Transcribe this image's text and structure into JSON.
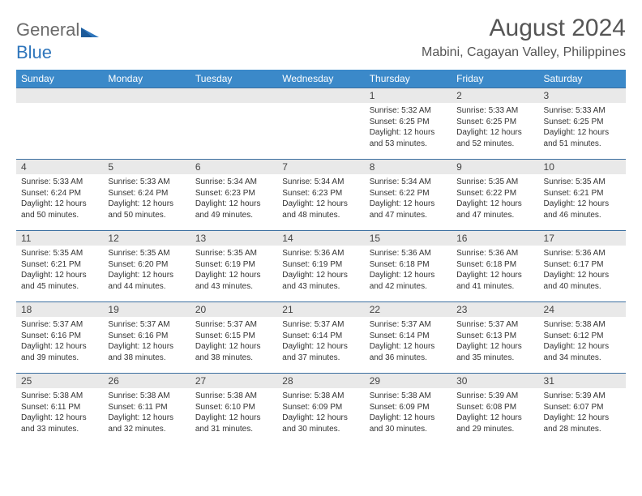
{
  "logo": {
    "part1": "General",
    "part2": "Blue"
  },
  "title": "August 2024",
  "location": "Mabini, Cagayan Valley, Philippines",
  "columns": [
    "Sunday",
    "Monday",
    "Tuesday",
    "Wednesday",
    "Thursday",
    "Friday",
    "Saturday"
  ],
  "colors": {
    "header_bg": "#3b89c9",
    "header_text": "#ffffff",
    "daynum_bg": "#e9e9e9",
    "border": "#3b6fa0",
    "logo_blue": "#2f76bc",
    "logo_gray": "#6b6b6b",
    "title_color": "#555555",
    "text": "#333333"
  },
  "fonts": {
    "title_size": 30,
    "location_size": 16,
    "dayhead_size": 12,
    "daynum_size": 12,
    "body_size": 10
  },
  "weeks": [
    [
      null,
      null,
      null,
      null,
      {
        "n": "1",
        "sr": "5:32 AM",
        "ss": "6:25 PM",
        "dl": "12 hours and 53 minutes."
      },
      {
        "n": "2",
        "sr": "5:33 AM",
        "ss": "6:25 PM",
        "dl": "12 hours and 52 minutes."
      },
      {
        "n": "3",
        "sr": "5:33 AM",
        "ss": "6:25 PM",
        "dl": "12 hours and 51 minutes."
      }
    ],
    [
      {
        "n": "4",
        "sr": "5:33 AM",
        "ss": "6:24 PM",
        "dl": "12 hours and 50 minutes."
      },
      {
        "n": "5",
        "sr": "5:33 AM",
        "ss": "6:24 PM",
        "dl": "12 hours and 50 minutes."
      },
      {
        "n": "6",
        "sr": "5:34 AM",
        "ss": "6:23 PM",
        "dl": "12 hours and 49 minutes."
      },
      {
        "n": "7",
        "sr": "5:34 AM",
        "ss": "6:23 PM",
        "dl": "12 hours and 48 minutes."
      },
      {
        "n": "8",
        "sr": "5:34 AM",
        "ss": "6:22 PM",
        "dl": "12 hours and 47 minutes."
      },
      {
        "n": "9",
        "sr": "5:35 AM",
        "ss": "6:22 PM",
        "dl": "12 hours and 47 minutes."
      },
      {
        "n": "10",
        "sr": "5:35 AM",
        "ss": "6:21 PM",
        "dl": "12 hours and 46 minutes."
      }
    ],
    [
      {
        "n": "11",
        "sr": "5:35 AM",
        "ss": "6:21 PM",
        "dl": "12 hours and 45 minutes."
      },
      {
        "n": "12",
        "sr": "5:35 AM",
        "ss": "6:20 PM",
        "dl": "12 hours and 44 minutes."
      },
      {
        "n": "13",
        "sr": "5:35 AM",
        "ss": "6:19 PM",
        "dl": "12 hours and 43 minutes."
      },
      {
        "n": "14",
        "sr": "5:36 AM",
        "ss": "6:19 PM",
        "dl": "12 hours and 43 minutes."
      },
      {
        "n": "15",
        "sr": "5:36 AM",
        "ss": "6:18 PM",
        "dl": "12 hours and 42 minutes."
      },
      {
        "n": "16",
        "sr": "5:36 AM",
        "ss": "6:18 PM",
        "dl": "12 hours and 41 minutes."
      },
      {
        "n": "17",
        "sr": "5:36 AM",
        "ss": "6:17 PM",
        "dl": "12 hours and 40 minutes."
      }
    ],
    [
      {
        "n": "18",
        "sr": "5:37 AM",
        "ss": "6:16 PM",
        "dl": "12 hours and 39 minutes."
      },
      {
        "n": "19",
        "sr": "5:37 AM",
        "ss": "6:16 PM",
        "dl": "12 hours and 38 minutes."
      },
      {
        "n": "20",
        "sr": "5:37 AM",
        "ss": "6:15 PM",
        "dl": "12 hours and 38 minutes."
      },
      {
        "n": "21",
        "sr": "5:37 AM",
        "ss": "6:14 PM",
        "dl": "12 hours and 37 minutes."
      },
      {
        "n": "22",
        "sr": "5:37 AM",
        "ss": "6:14 PM",
        "dl": "12 hours and 36 minutes."
      },
      {
        "n": "23",
        "sr": "5:37 AM",
        "ss": "6:13 PM",
        "dl": "12 hours and 35 minutes."
      },
      {
        "n": "24",
        "sr": "5:38 AM",
        "ss": "6:12 PM",
        "dl": "12 hours and 34 minutes."
      }
    ],
    [
      {
        "n": "25",
        "sr": "5:38 AM",
        "ss": "6:11 PM",
        "dl": "12 hours and 33 minutes."
      },
      {
        "n": "26",
        "sr": "5:38 AM",
        "ss": "6:11 PM",
        "dl": "12 hours and 32 minutes."
      },
      {
        "n": "27",
        "sr": "5:38 AM",
        "ss": "6:10 PM",
        "dl": "12 hours and 31 minutes."
      },
      {
        "n": "28",
        "sr": "5:38 AM",
        "ss": "6:09 PM",
        "dl": "12 hours and 30 minutes."
      },
      {
        "n": "29",
        "sr": "5:38 AM",
        "ss": "6:09 PM",
        "dl": "12 hours and 30 minutes."
      },
      {
        "n": "30",
        "sr": "5:39 AM",
        "ss": "6:08 PM",
        "dl": "12 hours and 29 minutes."
      },
      {
        "n": "31",
        "sr": "5:39 AM",
        "ss": "6:07 PM",
        "dl": "12 hours and 28 minutes."
      }
    ]
  ],
  "labels": {
    "sunrise": "Sunrise:",
    "sunset": "Sunset:",
    "daylight": "Daylight:"
  }
}
